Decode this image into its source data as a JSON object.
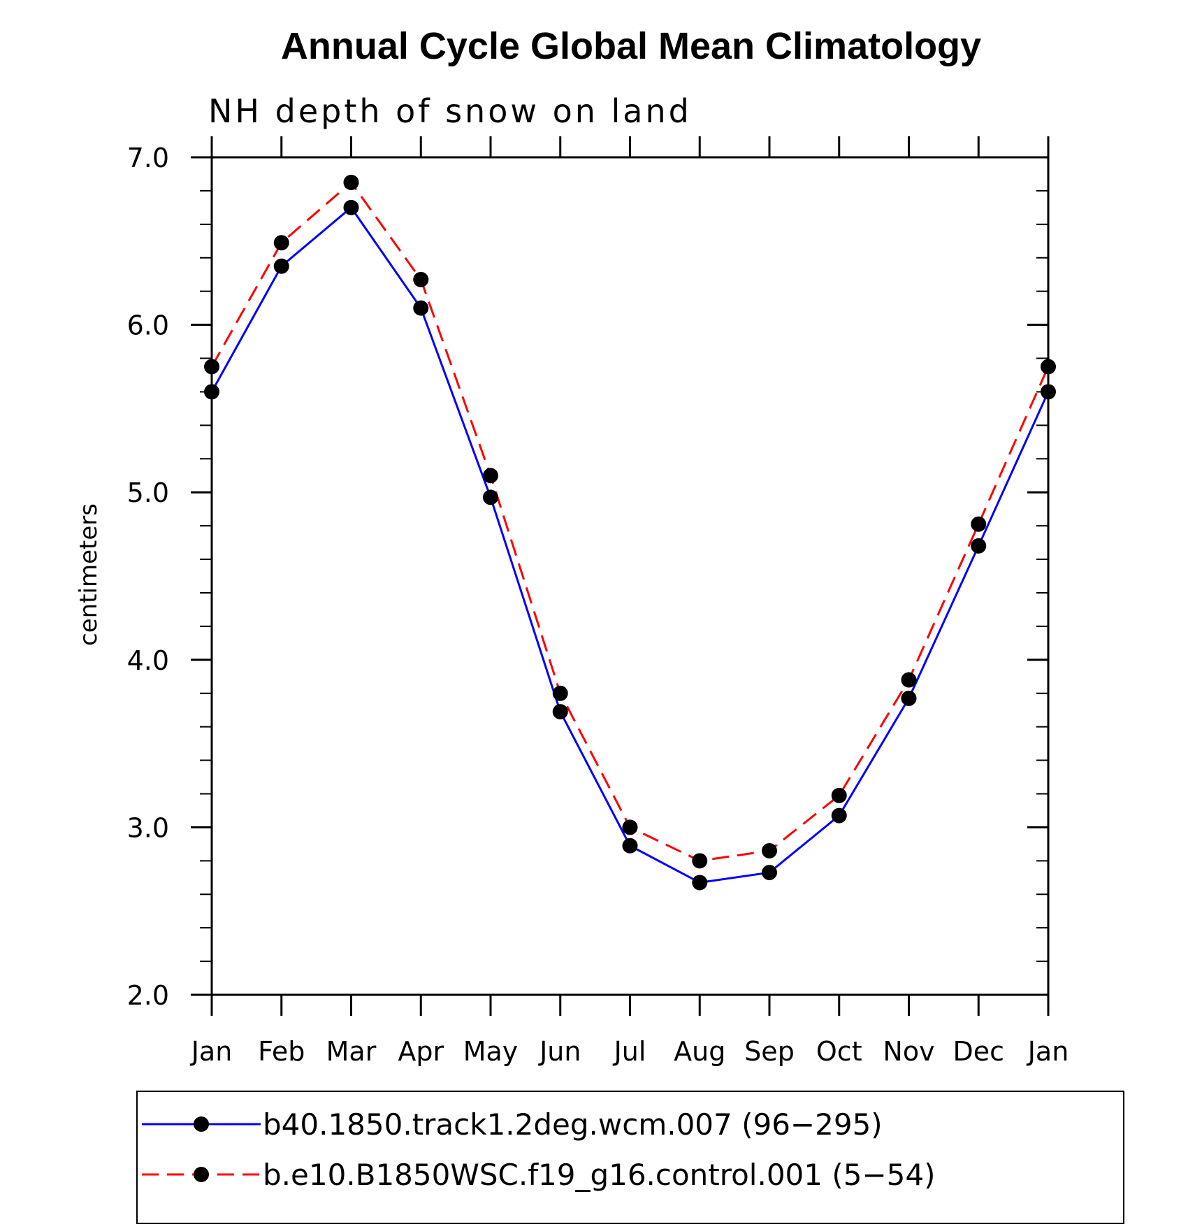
{
  "chart_data": {
    "type": "line",
    "title": "Annual Cycle Global Mean Climatology",
    "subtitle": "NH depth of snow on land",
    "xlabel": "",
    "ylabel": "centimeters",
    "categories": [
      "Jan",
      "Feb",
      "Mar",
      "Apr",
      "May",
      "Jun",
      "Jul",
      "Aug",
      "Sep",
      "Oct",
      "Nov",
      "Dec",
      "Jan"
    ],
    "ylim": [
      2.0,
      7.0
    ],
    "yticks": [
      "2.0",
      "3.0",
      "4.0",
      "5.0",
      "6.0",
      "7.0"
    ],
    "legend_position": "bottom",
    "series": [
      {
        "name": "b40.1850.track1.2deg.wcm.007 (96−295)",
        "color": "#0000ff",
        "line_style": "solid",
        "marker": "filled-circle",
        "values": [
          5.6,
          6.35,
          6.7,
          6.1,
          4.97,
          3.69,
          2.89,
          2.67,
          2.73,
          3.07,
          3.77,
          4.68,
          5.6
        ]
      },
      {
        "name": "b.e10.B1850WSC.f19_g16.control.001 (5−54)",
        "color": "#ff0000",
        "line_style": "dashed",
        "marker": "filled-circle",
        "values": [
          5.75,
          6.49,
          6.85,
          6.27,
          5.1,
          3.8,
          3.0,
          2.8,
          2.86,
          3.19,
          3.88,
          4.81,
          5.75
        ]
      }
    ]
  }
}
